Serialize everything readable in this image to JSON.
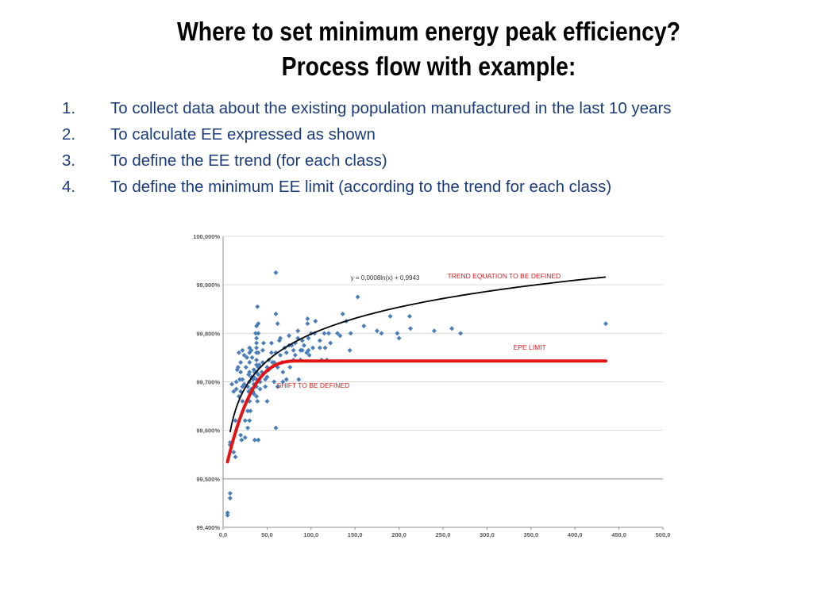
{
  "slide": {
    "title_line1": "Where to set minimum energy peak efficiency?",
    "title_line2": "Process flow with example:",
    "steps": [
      {
        "num": "1.",
        "text": "To collect data about the existing population manufactured in the last 10 years"
      },
      {
        "num": "2.",
        "text": "To calculate EE expressed as shown"
      },
      {
        "num": "3.",
        "text": "To define the EE trend (for each class)"
      },
      {
        "num": "4.",
        "text": "To define the minimum EE limit (according to the trend for each class)"
      }
    ]
  },
  "chart_data": {
    "type": "scatter",
    "xlim": [
      0,
      500
    ],
    "ylim": [
      99.4,
      100.0
    ],
    "x_ticks": [
      0,
      50,
      100,
      150,
      200,
      250,
      300,
      350,
      400,
      450,
      500
    ],
    "x_tick_labels": [
      "0,0",
      "50,0",
      "100,0",
      "150,0",
      "200,0",
      "250,0",
      "300,0",
      "350,0",
      "400,0",
      "450,0",
      "500,0"
    ],
    "y_ticks": [
      99.4,
      99.5,
      99.6,
      99.7,
      99.8,
      99.9,
      100.0
    ],
    "y_tick_labels": [
      "99,400%",
      "99,500%",
      "99,600%",
      "99,700%",
      "99,800%",
      "99,900%",
      "100,000%"
    ],
    "grid": true,
    "colors": {
      "points": "#4a7ebb",
      "trend": "#000000",
      "epe": "#e31414",
      "annotation": "#e31414",
      "grid": "#d9d9d9"
    },
    "trend_equation": "y = 0,0008ln(x) + 0,9943",
    "trend": {
      "a": 0.08,
      "b": 99.43,
      "x_start": 8,
      "x_end": 435
    },
    "epe_limit": {
      "level": 99.743,
      "x_start": 5,
      "knee_x": 88,
      "x_end": 435,
      "y_start": 99.535
    },
    "annotations": {
      "trend_label": "TREND EQUATION TO BE DEFINED",
      "epe_label": "EPE LIMIT",
      "shift_label": "SHIFT TO BE DEFINED"
    },
    "annotation_anchors": {
      "trend_eq": [
        145,
        99.91
      ],
      "trend_label": [
        255,
        99.913
      ],
      "epe_label": [
        330,
        99.766
      ],
      "shift_label": [
        61,
        99.688
      ]
    },
    "points": [
      [
        5,
        99.43
      ],
      [
        5,
        99.425
      ],
      [
        8,
        99.47
      ],
      [
        8,
        99.46
      ],
      [
        8,
        99.575
      ],
      [
        8,
        99.57
      ],
      [
        10,
        99.695
      ],
      [
        12,
        99.68
      ],
      [
        12,
        99.555
      ],
      [
        14,
        99.62
      ],
      [
        14,
        99.545
      ],
      [
        15,
        99.7
      ],
      [
        15,
        99.685
      ],
      [
        16,
        99.725
      ],
      [
        17,
        99.73
      ],
      [
        18,
        99.76
      ],
      [
        18,
        99.67
      ],
      [
        19,
        99.705
      ],
      [
        20,
        99.74
      ],
      [
        20,
        99.72
      ],
      [
        20,
        99.68
      ],
      [
        20,
        99.59
      ],
      [
        21,
        99.58
      ],
      [
        22,
        99.765
      ],
      [
        22,
        99.705
      ],
      [
        22,
        99.69
      ],
      [
        22,
        99.66
      ],
      [
        24,
        99.755
      ],
      [
        24,
        99.695
      ],
      [
        25,
        99.62
      ],
      [
        25,
        99.585
      ],
      [
        26,
        99.73
      ],
      [
        27,
        99.75
      ],
      [
        28,
        99.69
      ],
      [
        28,
        99.64
      ],
      [
        28,
        99.605
      ],
      [
        29,
        99.715
      ],
      [
        29,
        99.68
      ],
      [
        30,
        99.77
      ],
      [
        30,
        99.76
      ],
      [
        30,
        99.74
      ],
      [
        30,
        99.72
      ],
      [
        30,
        99.7
      ],
      [
        30,
        99.66
      ],
      [
        30,
        99.62
      ],
      [
        31,
        99.64
      ],
      [
        32,
        99.765
      ],
      [
        32,
        99.71
      ],
      [
        32,
        99.685
      ],
      [
        33,
        99.75
      ],
      [
        34,
        99.705
      ],
      [
        34,
        99.68
      ],
      [
        35,
        99.725
      ],
      [
        35,
        99.71
      ],
      [
        35,
        99.695
      ],
      [
        35,
        99.675
      ],
      [
        36,
        99.72
      ],
      [
        36,
        99.58
      ],
      [
        37,
        99.8
      ],
      [
        38,
        99.815
      ],
      [
        38,
        99.79
      ],
      [
        38,
        99.78
      ],
      [
        38,
        99.77
      ],
      [
        38,
        99.76
      ],
      [
        38,
        99.745
      ],
      [
        38,
        99.735
      ],
      [
        38,
        99.72
      ],
      [
        38,
        99.705
      ],
      [
        38,
        99.69
      ],
      [
        38,
        99.67
      ],
      [
        39,
        99.855
      ],
      [
        39,
        99.66
      ],
      [
        40,
        99.82
      ],
      [
        40,
        99.8
      ],
      [
        40,
        99.76
      ],
      [
        40,
        99.73
      ],
      [
        40,
        99.715
      ],
      [
        40,
        99.58
      ],
      [
        41,
        99.735
      ],
      [
        42,
        99.7
      ],
      [
        42,
        99.685
      ],
      [
        44,
        99.72
      ],
      [
        45,
        99.765
      ],
      [
        45,
        99.74
      ],
      [
        46,
        99.78
      ],
      [
        48,
        99.705
      ],
      [
        48,
        99.69
      ],
      [
        50,
        99.66
      ],
      [
        50,
        99.73
      ],
      [
        50,
        99.71
      ],
      [
        52,
        99.745
      ],
      [
        52,
        99.725
      ],
      [
        55,
        99.76
      ],
      [
        55,
        99.78
      ],
      [
        56,
        99.74
      ],
      [
        58,
        99.7
      ],
      [
        58,
        99.74
      ],
      [
        60,
        99.925
      ],
      [
        60,
        99.84
      ],
      [
        60,
        99.76
      ],
      [
        60,
        99.605
      ],
      [
        62,
        99.82
      ],
      [
        62,
        99.73
      ],
      [
        62,
        99.69
      ],
      [
        64,
        99.785
      ],
      [
        65,
        99.79
      ],
      [
        65,
        99.755
      ],
      [
        67,
        99.74
      ],
      [
        68,
        99.72
      ],
      [
        68,
        99.7
      ],
      [
        70,
        99.77
      ],
      [
        72,
        99.76
      ],
      [
        72,
        99.705
      ],
      [
        75,
        99.795
      ],
      [
        75,
        99.775
      ],
      [
        76,
        99.73
      ],
      [
        78,
        99.775
      ],
      [
        80,
        99.765
      ],
      [
        80,
        99.745
      ],
      [
        82,
        99.78
      ],
      [
        82,
        99.755
      ],
      [
        85,
        99.805
      ],
      [
        85,
        99.79
      ],
      [
        86,
        99.705
      ],
      [
        88,
        99.765
      ],
      [
        88,
        99.745
      ],
      [
        90,
        99.785
      ],
      [
        90,
        99.765
      ],
      [
        92,
        99.775
      ],
      [
        95,
        99.76
      ],
      [
        96,
        99.83
      ],
      [
        96,
        99.82
      ],
      [
        97,
        99.79
      ],
      [
        97,
        99.765
      ],
      [
        98,
        99.755
      ],
      [
        100,
        99.8
      ],
      [
        102,
        99.77
      ],
      [
        104,
        99.8
      ],
      [
        105,
        99.825
      ],
      [
        110,
        99.785
      ],
      [
        110,
        99.77
      ],
      [
        112,
        99.745
      ],
      [
        115,
        99.8
      ],
      [
        116,
        99.77
      ],
      [
        118,
        99.745
      ],
      [
        120,
        99.8
      ],
      [
        122,
        99.78
      ],
      [
        130,
        99.8
      ],
      [
        133,
        99.795
      ],
      [
        136,
        99.84
      ],
      [
        140,
        99.825
      ],
      [
        144,
        99.765
      ],
      [
        145,
        99.8
      ],
      [
        153,
        99.875
      ],
      [
        160,
        99.815
      ],
      [
        175,
        99.805
      ],
      [
        180,
        99.8
      ],
      [
        190,
        99.835
      ],
      [
        198,
        99.8
      ],
      [
        200,
        99.79
      ],
      [
        212,
        99.835
      ],
      [
        213,
        99.81
      ],
      [
        240,
        99.805
      ],
      [
        260,
        99.81
      ],
      [
        270,
        99.8
      ],
      [
        435,
        99.82
      ]
    ]
  }
}
